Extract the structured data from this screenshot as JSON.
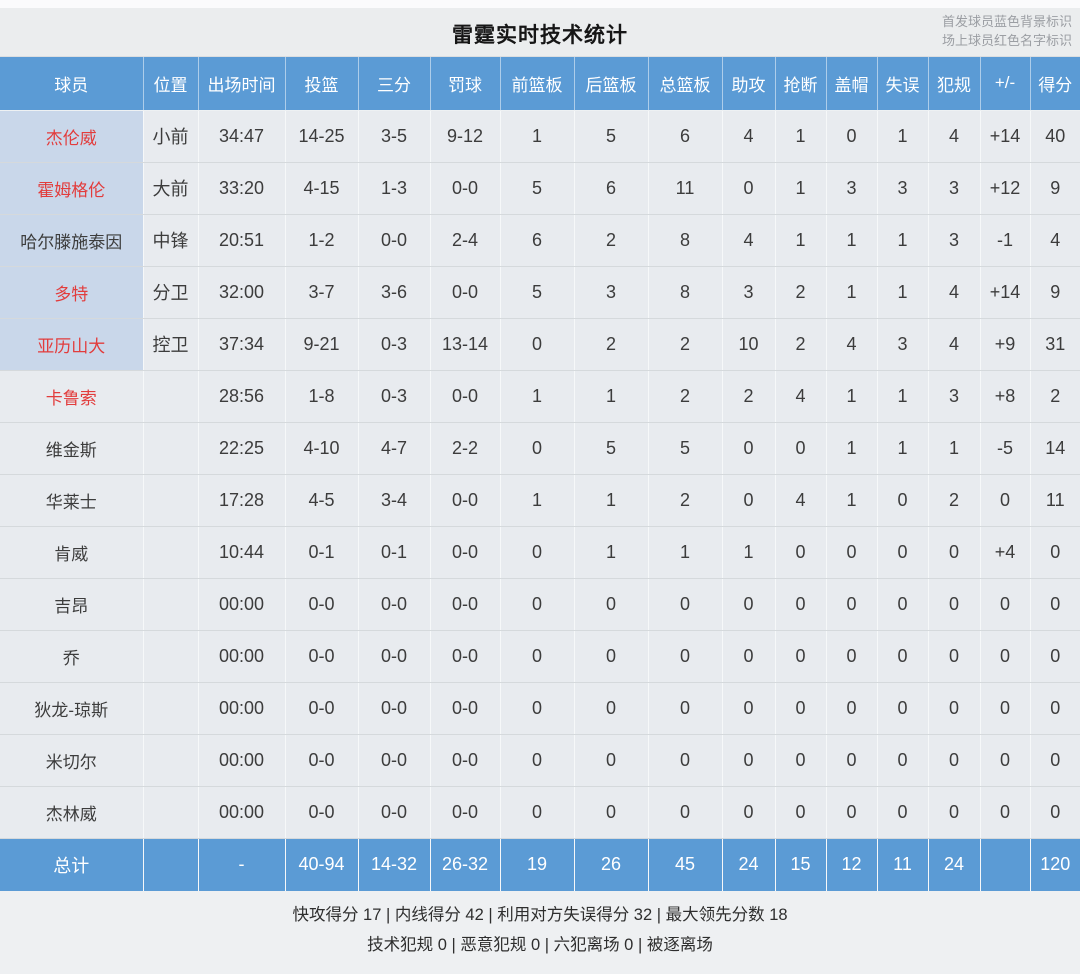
{
  "page": {
    "title": "雷霆实时技术统计",
    "legend_line1": "首发球员蓝色背景标识",
    "legend_line2": "场上球员红色名字标识"
  },
  "colors": {
    "header_blue": "#5b9bd5",
    "starter_cell_blue": "#c9d7ea",
    "oncourt_name_red": "#e23c3c",
    "row_bg": "#e8ebef"
  },
  "table": {
    "columns": [
      "球员",
      "位置",
      "出场时间",
      "投篮",
      "三分",
      "罚球",
      "前篮板",
      "后篮板",
      "总篮板",
      "助攻",
      "抢断",
      "盖帽",
      "失误",
      "犯规",
      "+/-",
      "得分"
    ],
    "players": [
      {
        "name": "杰伦威",
        "starter": true,
        "oncourt": true,
        "cells": [
          "小前",
          "34:47",
          "14-25",
          "3-5",
          "9-12",
          "1",
          "5",
          "6",
          "4",
          "1",
          "0",
          "1",
          "4",
          "+14",
          "40"
        ]
      },
      {
        "name": "霍姆格伦",
        "starter": true,
        "oncourt": true,
        "cells": [
          "大前",
          "33:20",
          "4-15",
          "1-3",
          "0-0",
          "5",
          "6",
          "11",
          "0",
          "1",
          "3",
          "3",
          "3",
          "+12",
          "9"
        ]
      },
      {
        "name": "哈尔滕施泰因",
        "starter": true,
        "oncourt": false,
        "cells": [
          "中锋",
          "20:51",
          "1-2",
          "0-0",
          "2-4",
          "6",
          "2",
          "8",
          "4",
          "1",
          "1",
          "1",
          "3",
          "-1",
          "4"
        ]
      },
      {
        "name": "多特",
        "starter": true,
        "oncourt": true,
        "cells": [
          "分卫",
          "32:00",
          "3-7",
          "3-6",
          "0-0",
          "5",
          "3",
          "8",
          "3",
          "2",
          "1",
          "1",
          "4",
          "+14",
          "9"
        ]
      },
      {
        "name": "亚历山大",
        "starter": true,
        "oncourt": true,
        "cells": [
          "控卫",
          "37:34",
          "9-21",
          "0-3",
          "13-14",
          "0",
          "2",
          "2",
          "10",
          "2",
          "4",
          "3",
          "4",
          "+9",
          "31"
        ]
      },
      {
        "name": "卡鲁索",
        "starter": false,
        "oncourt": true,
        "cells": [
          "",
          "28:56",
          "1-8",
          "0-3",
          "0-0",
          "1",
          "1",
          "2",
          "2",
          "4",
          "1",
          "1",
          "3",
          "+8",
          "2"
        ]
      },
      {
        "name": "维金斯",
        "starter": false,
        "oncourt": false,
        "cells": [
          "",
          "22:25",
          "4-10",
          "4-7",
          "2-2",
          "0",
          "5",
          "5",
          "0",
          "0",
          "1",
          "1",
          "1",
          "-5",
          "14"
        ]
      },
      {
        "name": "华莱士",
        "starter": false,
        "oncourt": false,
        "cells": [
          "",
          "17:28",
          "4-5",
          "3-4",
          "0-0",
          "1",
          "1",
          "2",
          "0",
          "4",
          "1",
          "0",
          "2",
          "0",
          "11"
        ]
      },
      {
        "name": "肯威",
        "starter": false,
        "oncourt": false,
        "cells": [
          "",
          "10:44",
          "0-1",
          "0-1",
          "0-0",
          "0",
          "1",
          "1",
          "1",
          "0",
          "0",
          "0",
          "0",
          "+4",
          "0"
        ]
      },
      {
        "name": "吉昂",
        "starter": false,
        "oncourt": false,
        "cells": [
          "",
          "00:00",
          "0-0",
          "0-0",
          "0-0",
          "0",
          "0",
          "0",
          "0",
          "0",
          "0",
          "0",
          "0",
          "0",
          "0"
        ]
      },
      {
        "name": "乔",
        "starter": false,
        "oncourt": false,
        "cells": [
          "",
          "00:00",
          "0-0",
          "0-0",
          "0-0",
          "0",
          "0",
          "0",
          "0",
          "0",
          "0",
          "0",
          "0",
          "0",
          "0"
        ]
      },
      {
        "name": "狄龙-琼斯",
        "starter": false,
        "oncourt": false,
        "cells": [
          "",
          "00:00",
          "0-0",
          "0-0",
          "0-0",
          "0",
          "0",
          "0",
          "0",
          "0",
          "0",
          "0",
          "0",
          "0",
          "0"
        ]
      },
      {
        "name": "米切尔",
        "starter": false,
        "oncourt": false,
        "cells": [
          "",
          "00:00",
          "0-0",
          "0-0",
          "0-0",
          "0",
          "0",
          "0",
          "0",
          "0",
          "0",
          "0",
          "0",
          "0",
          "0"
        ]
      },
      {
        "name": "杰林威",
        "starter": false,
        "oncourt": false,
        "cells": [
          "",
          "00:00",
          "0-0",
          "0-0",
          "0-0",
          "0",
          "0",
          "0",
          "0",
          "0",
          "0",
          "0",
          "0",
          "0",
          "0"
        ]
      }
    ],
    "totals": {
      "label": "总计",
      "cells": [
        "",
        "-",
        "40-94",
        "14-32",
        "26-32",
        "19",
        "26",
        "45",
        "24",
        "15",
        "12",
        "11",
        "24",
        "",
        "120"
      ]
    }
  },
  "footer": {
    "line1": "快攻得分 17 | 内线得分 42 | 利用对方失误得分 32 | 最大领先分数 18",
    "line2": "技术犯规 0 | 恶意犯规 0 | 六犯离场 0 | 被逐离场"
  }
}
